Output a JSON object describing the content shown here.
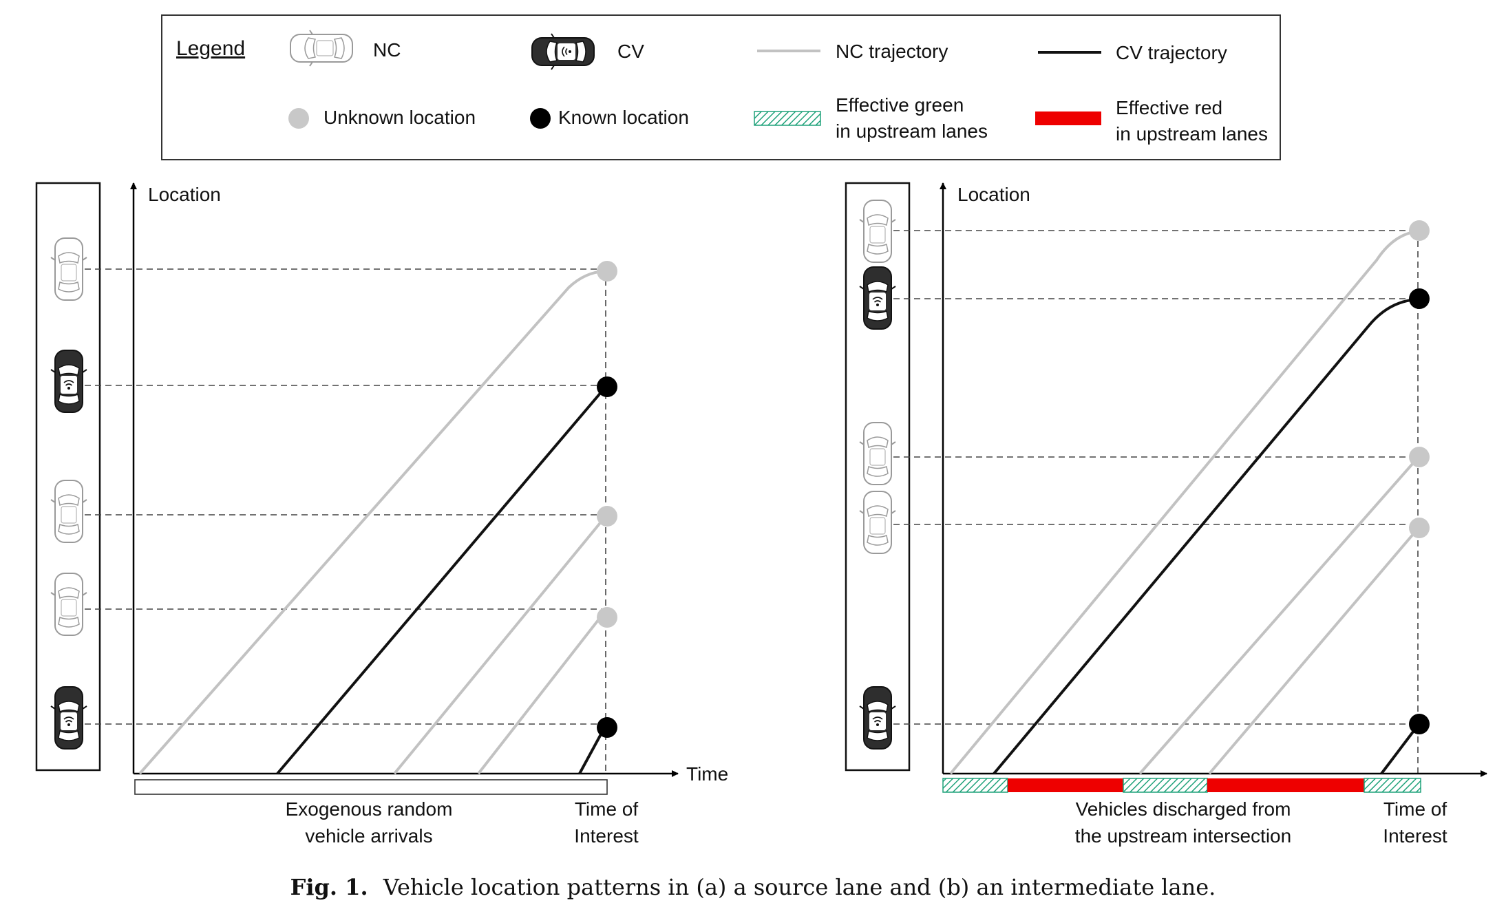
{
  "legend": {
    "title": "Legend",
    "nc_label": "NC",
    "cv_label": "CV",
    "nc_trajectory_label": "NC trajectory",
    "cv_trajectory_label": "CV trajectory",
    "unknown_location_label": "Unknown location",
    "known_location_label": "Known location",
    "effective_green_label": [
      "Effective green",
      "in upstream lanes"
    ],
    "effective_red_label": [
      "Effective red",
      "in upstream lanes"
    ]
  },
  "colors": {
    "nc_trajectory": "#c2c2c2",
    "cv_trajectory": "#111111",
    "unknown_location": "#c8c8c8",
    "known_location": "#000000",
    "effective_green": "#1fa27a",
    "effective_red": "#ee0000"
  },
  "panel_a": {
    "y_axis_label": "Location",
    "x_axis_label": "Time",
    "bottom_caption": [
      "Exogenous random",
      "vehicle arrivals"
    ],
    "time_of_interest_label": [
      "Time of",
      "Interest"
    ],
    "vehicles": [
      "NC",
      "CV",
      "NC",
      "NC",
      "CV"
    ]
  },
  "panel_b": {
    "y_axis_label": "Location",
    "bottom_caption": [
      "Vehicles discharged from",
      "the upstream intersection"
    ],
    "time_of_interest_label": [
      "Time of",
      "Interest"
    ],
    "vehicles": [
      "NC",
      "CV",
      "NC",
      "NC",
      "CV"
    ],
    "signal_phases": [
      "green",
      "red",
      "green",
      "red",
      "green"
    ]
  },
  "caption": {
    "label": "Fig. 1.",
    "text": "Vehicle location patterns in (a) a source lane and (b) an intermediate lane."
  }
}
